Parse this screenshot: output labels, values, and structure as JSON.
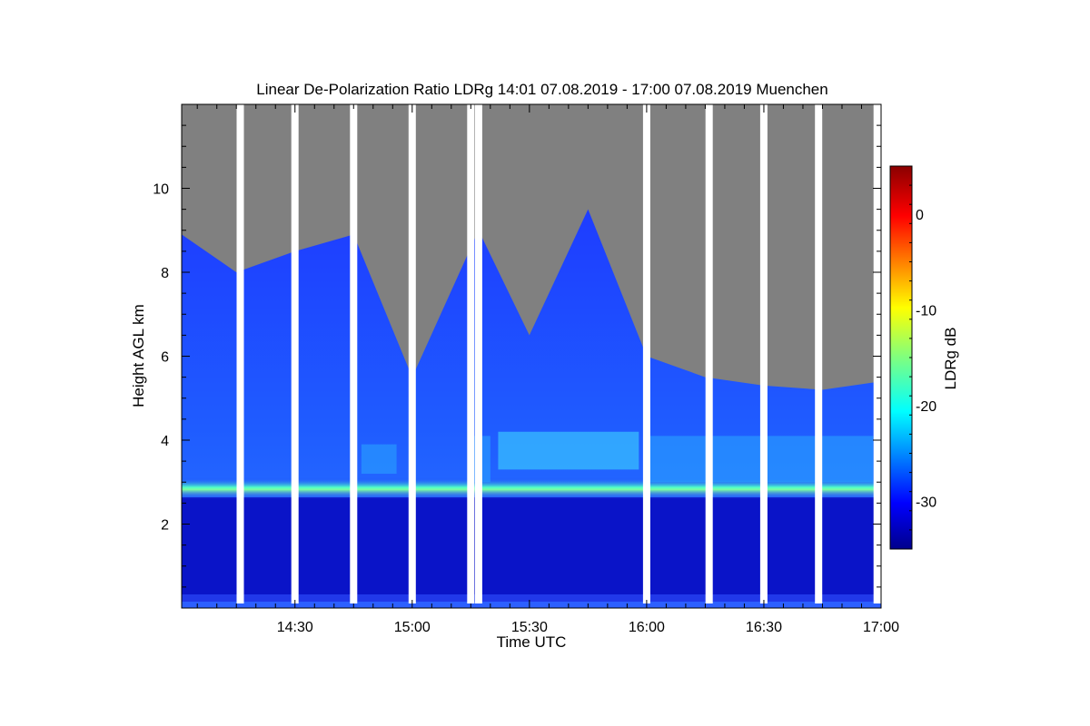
{
  "chart_data": {
    "type": "heatmap",
    "title": "Linear De-Polarization Ratio LDRg   14:01 07.08.2019 - 17:00 07.08.2019 Muenchen",
    "xlabel": "Time UTC",
    "ylabel": "Height AGL km",
    "colorbar_label": "LDRg dB",
    "x_range": [
      "14:01",
      "17:00"
    ],
    "y_range_km": [
      0,
      12
    ],
    "x_ticks": [
      "14:30",
      "15:00",
      "15:30",
      "16:00",
      "16:30",
      "17:00"
    ],
    "y_ticks": [
      "2",
      "4",
      "6",
      "8",
      "10"
    ],
    "colorbar_range_db": [
      -35,
      5
    ],
    "colorbar_ticks": [
      "0",
      "-10",
      "-20",
      "-30"
    ],
    "colormap": "jet",
    "colors": {
      "no_signal": "#808080",
      "data_gap": "#ffffff",
      "low": "#00008b",
      "high": "#8b0000"
    },
    "data_gaps_utc": [
      "14:16",
      "14:30",
      "14:45",
      "15:00",
      "15:15",
      "15:17",
      "16:00",
      "16:16",
      "16:30",
      "16:44",
      "16:59"
    ],
    "features": {
      "melting_layer_height_km": 2.85,
      "cloud_top_height_km": [
        {
          "time": "14:01",
          "top": 8.9
        },
        {
          "time": "14:15",
          "top": 8.0
        },
        {
          "time": "14:30",
          "top": 8.5
        },
        {
          "time": "14:45",
          "top": 8.9
        },
        {
          "time": "15:00",
          "top": 5.5
        },
        {
          "time": "15:17",
          "top": 9.0
        },
        {
          "time": "15:30",
          "top": 6.5
        },
        {
          "time": "15:45",
          "top": 9.5
        },
        {
          "time": "16:00",
          "top": 6.0
        },
        {
          "time": "16:15",
          "top": 5.5
        },
        {
          "time": "16:30",
          "top": 5.3
        },
        {
          "time": "16:45",
          "top": 5.2
        },
        {
          "time": "17:00",
          "top": 5.4
        }
      ]
    }
  }
}
